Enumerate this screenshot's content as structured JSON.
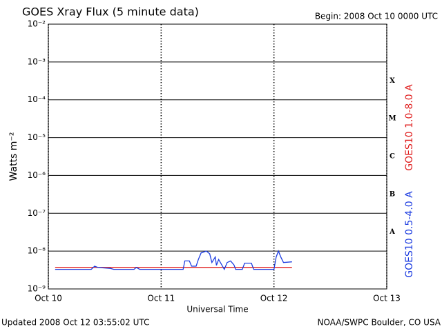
{
  "chart_data": {
    "type": "line",
    "title": "GOES Xray Flux (5 minute data)",
    "subtitle": "Begin:  2008 Oct 10 0000 UTC",
    "y_label": "Watts m⁻²",
    "x_label": "Universal Time",
    "footer_left": "Updated 2008 Oct 12 03:55:02 UTC",
    "footer_right": "NOAA/SWPC Boulder, CO USA",
    "flare_classes": [
      "X",
      "M",
      "C",
      "B",
      "A"
    ],
    "yscale": "log",
    "ylim": [
      1e-09,
      0.01
    ],
    "yticks": [
      {
        "value": 0.01,
        "label": "10⁻²"
      },
      {
        "value": 0.001,
        "label": "10⁻³"
      },
      {
        "value": 0.0001,
        "label": "10⁻⁴"
      },
      {
        "value": 1e-05,
        "label": "10⁻⁵"
      },
      {
        "value": 1e-06,
        "label": "10⁻⁶"
      },
      {
        "value": 1e-07,
        "label": "10⁻⁷"
      },
      {
        "value": 1e-08,
        "label": "10⁻⁸"
      },
      {
        "value": 1e-09,
        "label": "10⁻⁹"
      }
    ],
    "xlim": [
      0,
      3
    ],
    "xticks": [
      {
        "value": 0,
        "label": "Oct 10"
      },
      {
        "value": 1,
        "label": "Oct 11"
      },
      {
        "value": 2,
        "label": "Oct 12"
      },
      {
        "value": 3,
        "label": "Oct 13"
      }
    ],
    "grid": true,
    "series": [
      {
        "name": "GOES10 1.0-8.0 A",
        "color": "#e02020",
        "x": [
          0.06,
          2.16
        ],
        "values": [
          3.7e-09,
          3.7e-09
        ]
      },
      {
        "name": "GOES10 0.5-4.0 A",
        "color": "#1c3ce0",
        "x": [
          0.06,
          0.38,
          0.41,
          0.44,
          0.49,
          0.55,
          0.58,
          0.76,
          0.78,
          0.81,
          1.195,
          1.21,
          1.25,
          1.27,
          1.31,
          1.33,
          1.354,
          1.4,
          1.43,
          1.45,
          1.48,
          1.49,
          1.51,
          1.54,
          1.56,
          1.585,
          1.616,
          1.646,
          1.66,
          1.72,
          1.74,
          1.8,
          1.82,
          2.0,
          2.02,
          2.04,
          2.06,
          2.085,
          2.16
        ],
        "values": [
          3.3e-09,
          3.3e-09,
          4e-09,
          3.7e-09,
          3.6e-09,
          3.5e-09,
          3.3e-09,
          3.3e-09,
          3.7e-09,
          3.3e-09,
          3.3e-09,
          5.5e-09,
          5.5e-09,
          4e-09,
          4e-09,
          6e-09,
          9e-09,
          1e-08,
          8.5e-09,
          5e-09,
          7e-09,
          4.2e-09,
          6e-09,
          4.2e-09,
          3.3e-09,
          5e-09,
          5.5e-09,
          4.3e-09,
          3.3e-09,
          3.3e-09,
          4.8e-09,
          4.8e-09,
          3.3e-09,
          3.3e-09,
          7e-09,
          1e-08,
          7e-09,
          5e-09,
          5.2e-09
        ]
      }
    ]
  }
}
